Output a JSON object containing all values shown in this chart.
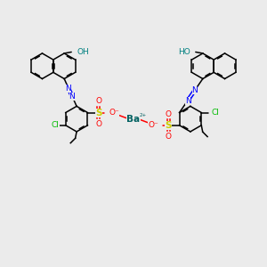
{
  "background_color": "#ebebeb",
  "fig_width": 3.0,
  "fig_height": 3.0,
  "dpi": 100,
  "bond_color": "#000000",
  "bond_lw": 1.1,
  "n_color": "#0000FF",
  "o_color": "#FF0000",
  "s_color": "#CCCC00",
  "cl_color": "#00BB00",
  "ba_color": "#006060",
  "oh_color": "#008080",
  "fs": 6.5,
  "r_ring": 0.48,
  "xlim": [
    0,
    10
  ],
  "ylim": [
    0,
    10
  ]
}
